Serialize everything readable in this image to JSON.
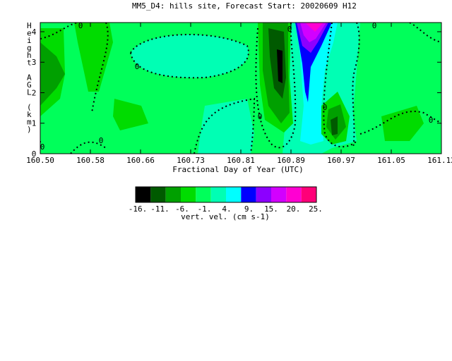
{
  "chart_data": {
    "type": "heatmap",
    "title": "MM5_D4: hills site,  Forecast Start: 20020609 H12",
    "xlabel": "Fractional Day of Year (UTC)",
    "ylabel": "Height AGL (km)",
    "xlim": [
      160.5,
      161.12
    ],
    "ylim": [
      0,
      4.3
    ],
    "xticks": [
      "160.50",
      "160.58",
      "160.66",
      "160.73",
      "160.81",
      "160.89",
      "160.97",
      "161.05",
      "161.12"
    ],
    "yticks": [
      "0",
      "1",
      "2",
      "3",
      "4"
    ],
    "contour_labels": [
      "0",
      "0",
      "0",
      "0",
      "0",
      "0",
      "0",
      "0",
      "0"
    ],
    "colorbar": {
      "label": "vert. vel. (cm s-1)",
      "tick_labels": [
        "-16.",
        "-11.",
        "-6.",
        "-1.",
        "4.",
        "9.",
        "15.",
        "20.",
        "25."
      ],
      "colors": [
        "#000000",
        "#005a00",
        "#00a000",
        "#00dc00",
        "#00ff5a",
        "#00ffb4",
        "#00ffff",
        "#0000ff",
        "#8c00ff",
        "#d200ff",
        "#ff00d2",
        "#ff0078"
      ]
    }
  }
}
